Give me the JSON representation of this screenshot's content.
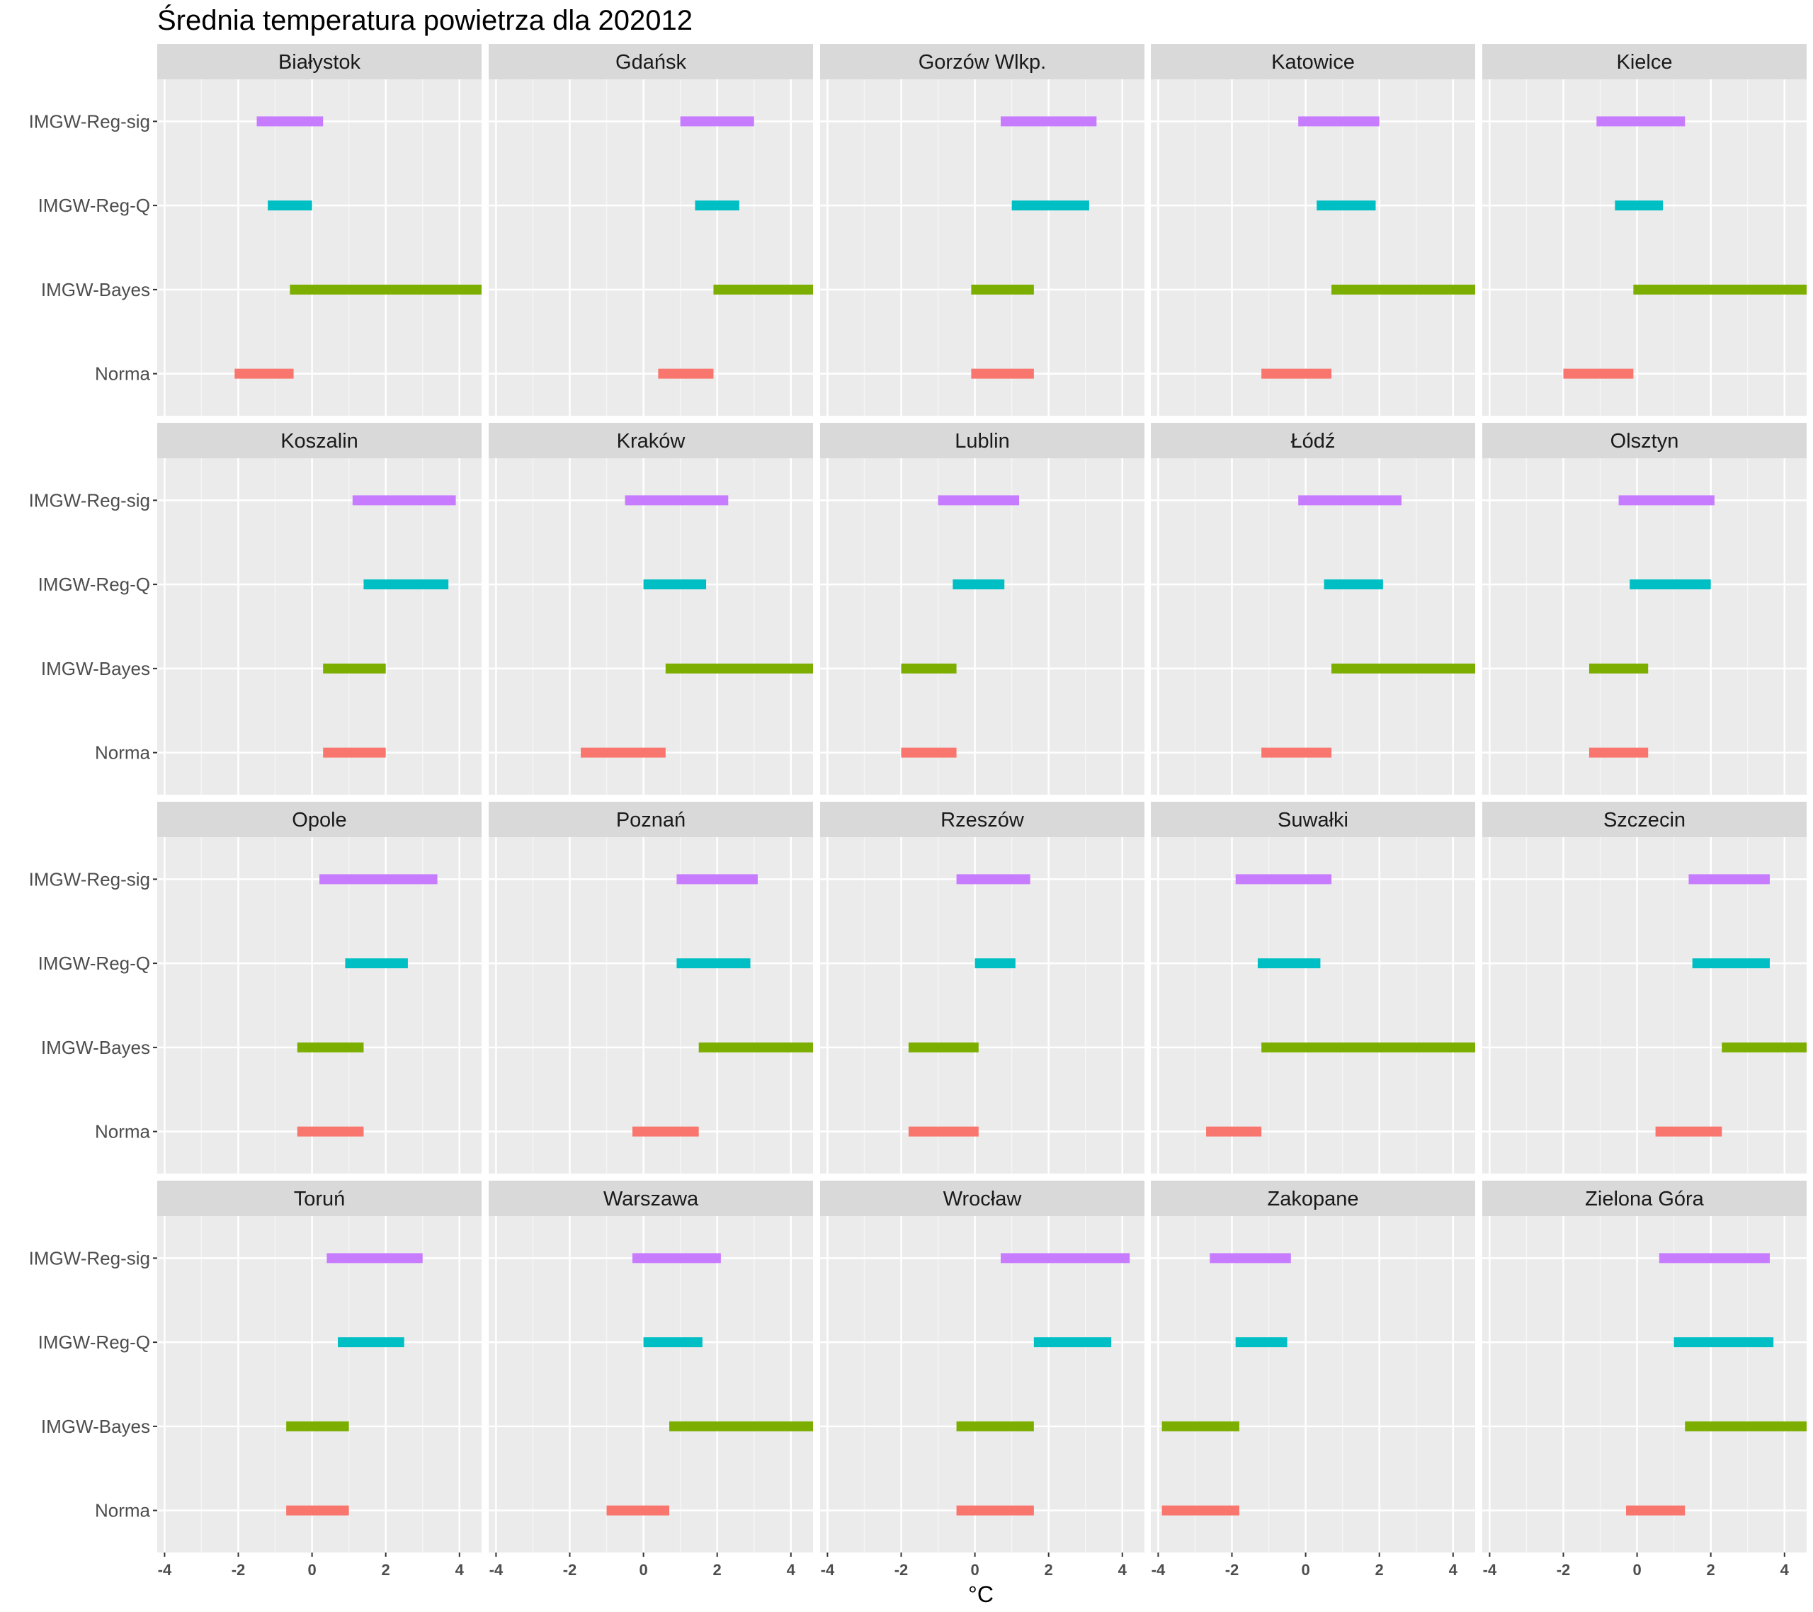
{
  "chart_data": {
    "type": "bar",
    "title": "Średnia temperatura powietrza dla 202012",
    "xlabel": "°C",
    "ylabel": "",
    "xlim": [
      -4.2,
      4.6
    ],
    "x_ticks": [
      "-4",
      "-2",
      "0",
      "2",
      "4"
    ],
    "categories": [
      "Norma",
      "IMGW-Bayes",
      "IMGW-Reg-Q",
      "IMGW-Reg-sig"
    ],
    "colors": {
      "Norma": "#F8766D",
      "IMGW-Bayes": "#7CAE00",
      "IMGW-Reg-Q": "#00BFC4",
      "IMGW-Reg-sig": "#C77CFF"
    },
    "grid": true,
    "panels": [
      {
        "city": "Białystok",
        "ranges": {
          "Norma": [
            -2.1,
            -0.5
          ],
          "IMGW-Bayes": [
            -0.6,
            4.6
          ],
          "IMGW-Reg-Q": [
            -1.2,
            0.0
          ],
          "IMGW-Reg-sig": [
            -1.5,
            0.3
          ]
        }
      },
      {
        "city": "Gdańsk",
        "ranges": {
          "Norma": [
            0.4,
            1.9
          ],
          "IMGW-Bayes": [
            1.9,
            4.6
          ],
          "IMGW-Reg-Q": [
            1.4,
            2.6
          ],
          "IMGW-Reg-sig": [
            1.0,
            3.0
          ]
        }
      },
      {
        "city": "Gorzów Wlkp.",
        "ranges": {
          "Norma": [
            -0.1,
            1.6
          ],
          "IMGW-Bayes": [
            -0.1,
            1.6
          ],
          "IMGW-Reg-Q": [
            1.0,
            3.1
          ],
          "IMGW-Reg-sig": [
            0.7,
            3.3
          ]
        }
      },
      {
        "city": "Katowice",
        "ranges": {
          "Norma": [
            -1.2,
            0.7
          ],
          "IMGW-Bayes": [
            0.7,
            4.6
          ],
          "IMGW-Reg-Q": [
            0.3,
            1.9
          ],
          "IMGW-Reg-sig": [
            -0.2,
            2.0
          ]
        }
      },
      {
        "city": "Kielce",
        "ranges": {
          "Norma": [
            -2.0,
            -0.1
          ],
          "IMGW-Bayes": [
            -0.1,
            4.6
          ],
          "IMGW-Reg-Q": [
            -0.6,
            0.7
          ],
          "IMGW-Reg-sig": [
            -1.1,
            1.3
          ]
        }
      },
      {
        "city": "Koszalin",
        "ranges": {
          "Norma": [
            0.3,
            2.0
          ],
          "IMGW-Bayes": [
            0.3,
            2.0
          ],
          "IMGW-Reg-Q": [
            1.4,
            3.7
          ],
          "IMGW-Reg-sig": [
            1.1,
            3.9
          ]
        }
      },
      {
        "city": "Kraków",
        "ranges": {
          "Norma": [
            -1.7,
            0.6
          ],
          "IMGW-Bayes": [
            0.6,
            4.6
          ],
          "IMGW-Reg-Q": [
            0.0,
            1.7
          ],
          "IMGW-Reg-sig": [
            -0.5,
            2.3
          ]
        }
      },
      {
        "city": "Lublin",
        "ranges": {
          "Norma": [
            -2.0,
            -0.5
          ],
          "IMGW-Bayes": [
            -2.0,
            -0.5
          ],
          "IMGW-Reg-Q": [
            -0.6,
            0.8
          ],
          "IMGW-Reg-sig": [
            -1.0,
            1.2
          ]
        }
      },
      {
        "city": "Łódź",
        "ranges": {
          "Norma": [
            -1.2,
            0.7
          ],
          "IMGW-Bayes": [
            0.7,
            4.6
          ],
          "IMGW-Reg-Q": [
            0.5,
            2.1
          ],
          "IMGW-Reg-sig": [
            -0.2,
            2.6
          ]
        }
      },
      {
        "city": "Olsztyn",
        "ranges": {
          "Norma": [
            -1.3,
            0.3
          ],
          "IMGW-Bayes": [
            -1.3,
            0.3
          ],
          "IMGW-Reg-Q": [
            -0.2,
            2.0
          ],
          "IMGW-Reg-sig": [
            -0.5,
            2.1
          ]
        }
      },
      {
        "city": "Opole",
        "ranges": {
          "Norma": [
            -0.4,
            1.4
          ],
          "IMGW-Bayes": [
            -0.4,
            1.4
          ],
          "IMGW-Reg-Q": [
            0.9,
            2.6
          ],
          "IMGW-Reg-sig": [
            0.2,
            3.4
          ]
        }
      },
      {
        "city": "Poznań",
        "ranges": {
          "Norma": [
            -0.3,
            1.5
          ],
          "IMGW-Bayes": [
            1.5,
            4.6
          ],
          "IMGW-Reg-Q": [
            0.9,
            2.9
          ],
          "IMGW-Reg-sig": [
            0.9,
            3.1
          ]
        }
      },
      {
        "city": "Rzeszów",
        "ranges": {
          "Norma": [
            -1.8,
            0.1
          ],
          "IMGW-Bayes": [
            -1.8,
            0.1
          ],
          "IMGW-Reg-Q": [
            0.0,
            1.1
          ],
          "IMGW-Reg-sig": [
            -0.5,
            1.5
          ]
        }
      },
      {
        "city": "Suwałki",
        "ranges": {
          "Norma": [
            -2.7,
            -1.2
          ],
          "IMGW-Bayes": [
            -1.2,
            4.6
          ],
          "IMGW-Reg-Q": [
            -1.3,
            0.4
          ],
          "IMGW-Reg-sig": [
            -1.9,
            0.7
          ]
        }
      },
      {
        "city": "Szczecin",
        "ranges": {
          "Norma": [
            0.5,
            2.3
          ],
          "IMGW-Bayes": [
            2.3,
            4.6
          ],
          "IMGW-Reg-Q": [
            1.5,
            3.6
          ],
          "IMGW-Reg-sig": [
            1.4,
            3.6
          ]
        }
      },
      {
        "city": "Toruń",
        "ranges": {
          "Norma": [
            -0.7,
            1.0
          ],
          "IMGW-Bayes": [
            -0.7,
            1.0
          ],
          "IMGW-Reg-Q": [
            0.7,
            2.5
          ],
          "IMGW-Reg-sig": [
            0.4,
            3.0
          ]
        }
      },
      {
        "city": "Warszawa",
        "ranges": {
          "Norma": [
            -1.0,
            0.7
          ],
          "IMGW-Bayes": [
            0.7,
            4.6
          ],
          "IMGW-Reg-Q": [
            0.0,
            1.6
          ],
          "IMGW-Reg-sig": [
            -0.3,
            2.1
          ]
        }
      },
      {
        "city": "Wrocław",
        "ranges": {
          "Norma": [
            -0.5,
            1.6
          ],
          "IMGW-Bayes": [
            -0.5,
            1.6
          ],
          "IMGW-Reg-Q": [
            1.6,
            3.7
          ],
          "IMGW-Reg-sig": [
            0.7,
            4.2
          ]
        }
      },
      {
        "city": "Zakopane",
        "ranges": {
          "Norma": [
            -3.9,
            -1.8
          ],
          "IMGW-Bayes": [
            -3.9,
            -1.8
          ],
          "IMGW-Reg-Q": [
            -1.9,
            -0.5
          ],
          "IMGW-Reg-sig": [
            -2.6,
            -0.4
          ]
        }
      },
      {
        "city": "Zielona Góra",
        "ranges": {
          "Norma": [
            -0.3,
            1.3
          ],
          "IMGW-Bayes": [
            1.3,
            4.6
          ],
          "IMGW-Reg-Q": [
            1.0,
            3.7
          ],
          "IMGW-Reg-sig": [
            0.6,
            3.6
          ]
        }
      }
    ]
  }
}
